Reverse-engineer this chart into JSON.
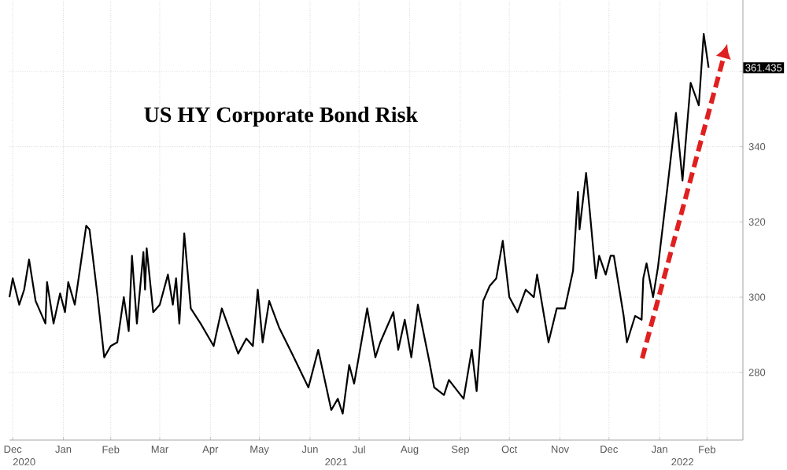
{
  "chart_data": {
    "type": "line",
    "title": "US HY Corporate Bond Risk",
    "color": "#000000",
    "grid": true,
    "x": [
      "2020-12-14",
      "2020-12-16",
      "2020-12-20",
      "2020-12-23",
      "2020-12-26",
      "2020-12-30",
      "2021-01-02",
      "2021-01-05",
      "2021-01-06",
      "2021-01-10",
      "2021-01-14",
      "2021-01-17",
      "2021-01-19",
      "2021-01-23",
      "2021-01-27",
      "2021-01-30",
      "2021-02-01",
      "2021-02-06",
      "2021-02-10",
      "2021-02-14",
      "2021-02-18",
      "2021-02-22",
      "2021-02-25",
      "2021-02-27",
      "2021-03-02",
      "2021-03-06",
      "2021-03-07",
      "2021-03-08",
      "2021-03-12",
      "2021-03-16",
      "2021-03-21",
      "2021-03-24",
      "2021-03-26",
      "2021-03-28",
      "2021-03-31",
      "2021-04-04",
      "2021-04-10",
      "2021-04-18",
      "2021-04-23",
      "2021-04-28",
      "2021-05-03",
      "2021-05-08",
      "2021-05-12",
      "2021-05-15",
      "2021-05-18",
      "2021-05-22",
      "2021-05-28",
      "2021-06-05",
      "2021-06-15",
      "2021-06-21",
      "2021-06-29",
      "2021-07-03",
      "2021-07-06",
      "2021-07-10",
      "2021-07-13",
      "2021-07-21",
      "2021-07-26",
      "2021-07-29",
      "2021-08-06",
      "2021-08-09",
      "2021-08-13",
      "2021-08-17",
      "2021-08-21",
      "2021-08-28",
      "2021-08-31",
      "2021-09-06",
      "2021-09-09",
      "2021-09-18",
      "2021-09-23",
      "2021-09-26",
      "2021-09-30",
      "2021-10-04",
      "2021-10-08",
      "2021-10-12",
      "2021-10-16",
      "2021-10-21",
      "2021-10-26",
      "2021-10-31",
      "2021-11-02",
      "2021-11-09",
      "2021-11-14",
      "2021-11-19",
      "2021-11-24",
      "2021-11-27",
      "2021-11-28",
      "2021-12-02",
      "2021-12-04",
      "2021-12-08",
      "2021-12-10",
      "2021-12-14",
      "2021-12-17",
      "2021-12-19",
      "2021-12-25",
      "2021-12-27",
      "2022-01-01",
      "2022-01-05",
      "2022-01-06",
      "2022-01-08",
      "2022-01-12",
      "2022-01-15",
      "2022-01-21",
      "2022-01-26",
      "2022-01-30",
      "2022-02-04",
      "2022-02-09",
      "2022-02-12",
      "2022-02-15"
    ],
    "values": [
      300,
      305,
      298,
      302,
      310,
      299,
      296,
      293,
      304,
      293,
      301,
      296,
      304,
      298,
      310,
      319,
      318,
      300,
      284,
      287,
      288,
      300,
      291,
      311,
      293,
      312,
      302,
      313,
      296,
      298,
      306,
      298,
      305,
      293,
      317,
      297,
      293,
      287,
      297,
      291,
      285,
      289,
      287,
      302,
      288,
      299,
      292,
      285,
      276,
      286,
      270,
      273,
      269,
      282,
      277,
      297,
      284,
      288,
      296,
      286,
      294,
      284,
      298,
      283,
      276,
      274,
      278,
      273,
      286,
      275,
      299,
      303,
      305,
      315,
      300,
      296,
      302,
      300,
      306,
      288,
      297,
      297,
      307,
      328,
      318,
      333,
      324,
      305,
      311,
      306,
      311,
      311,
      295,
      288,
      295,
      294,
      305,
      309,
      300,
      308,
      330,
      349,
      331,
      357,
      351,
      370,
      361
    ],
    "xlim": [
      "2020-12-14",
      "2022-03-08"
    ],
    "ylim": [
      262,
      379
    ],
    "yticks": [
      280,
      300,
      320,
      340,
      {
        "value": 360,
        "label": null
      }
    ],
    "xticks": [
      {
        "value": "2020-12-16",
        "label": "Dec"
      },
      {
        "value": "2021-01-16",
        "label": "Jan"
      },
      {
        "value": "2021-02-14",
        "label": "Feb"
      },
      {
        "value": "2021-03-16",
        "label": "Mar"
      },
      {
        "value": "2021-04-16",
        "label": "Apr"
      },
      {
        "value": "2021-05-16",
        "label": "May"
      },
      {
        "value": "2021-06-16",
        "label": "Jun"
      },
      {
        "value": "2021-07-16",
        "label": "Jul"
      },
      {
        "value": "2021-08-16",
        "label": "Aug"
      },
      {
        "value": "2021-09-16",
        "label": "Sep"
      },
      {
        "value": "2021-10-16",
        "label": "Oct"
      },
      {
        "value": "2021-11-16",
        "label": "Nov"
      },
      {
        "value": "2021-12-16",
        "label": "Dec"
      },
      {
        "value": "2022-01-16",
        "label": "Jan"
      },
      {
        "value": "2022-02-14",
        "label": "Feb"
      }
    ],
    "x2lim": [
      "2020-12-14",
      "2022-03-08"
    ],
    "x2ticks": [
      {
        "value": "2020-12-23",
        "label": "2020"
      },
      {
        "value": "2021-07-02",
        "label": "2021"
      },
      {
        "value": "2022-01-30",
        "label": "2022"
      }
    ],
    "annotations": [
      "361.435"
    ]
  }
}
